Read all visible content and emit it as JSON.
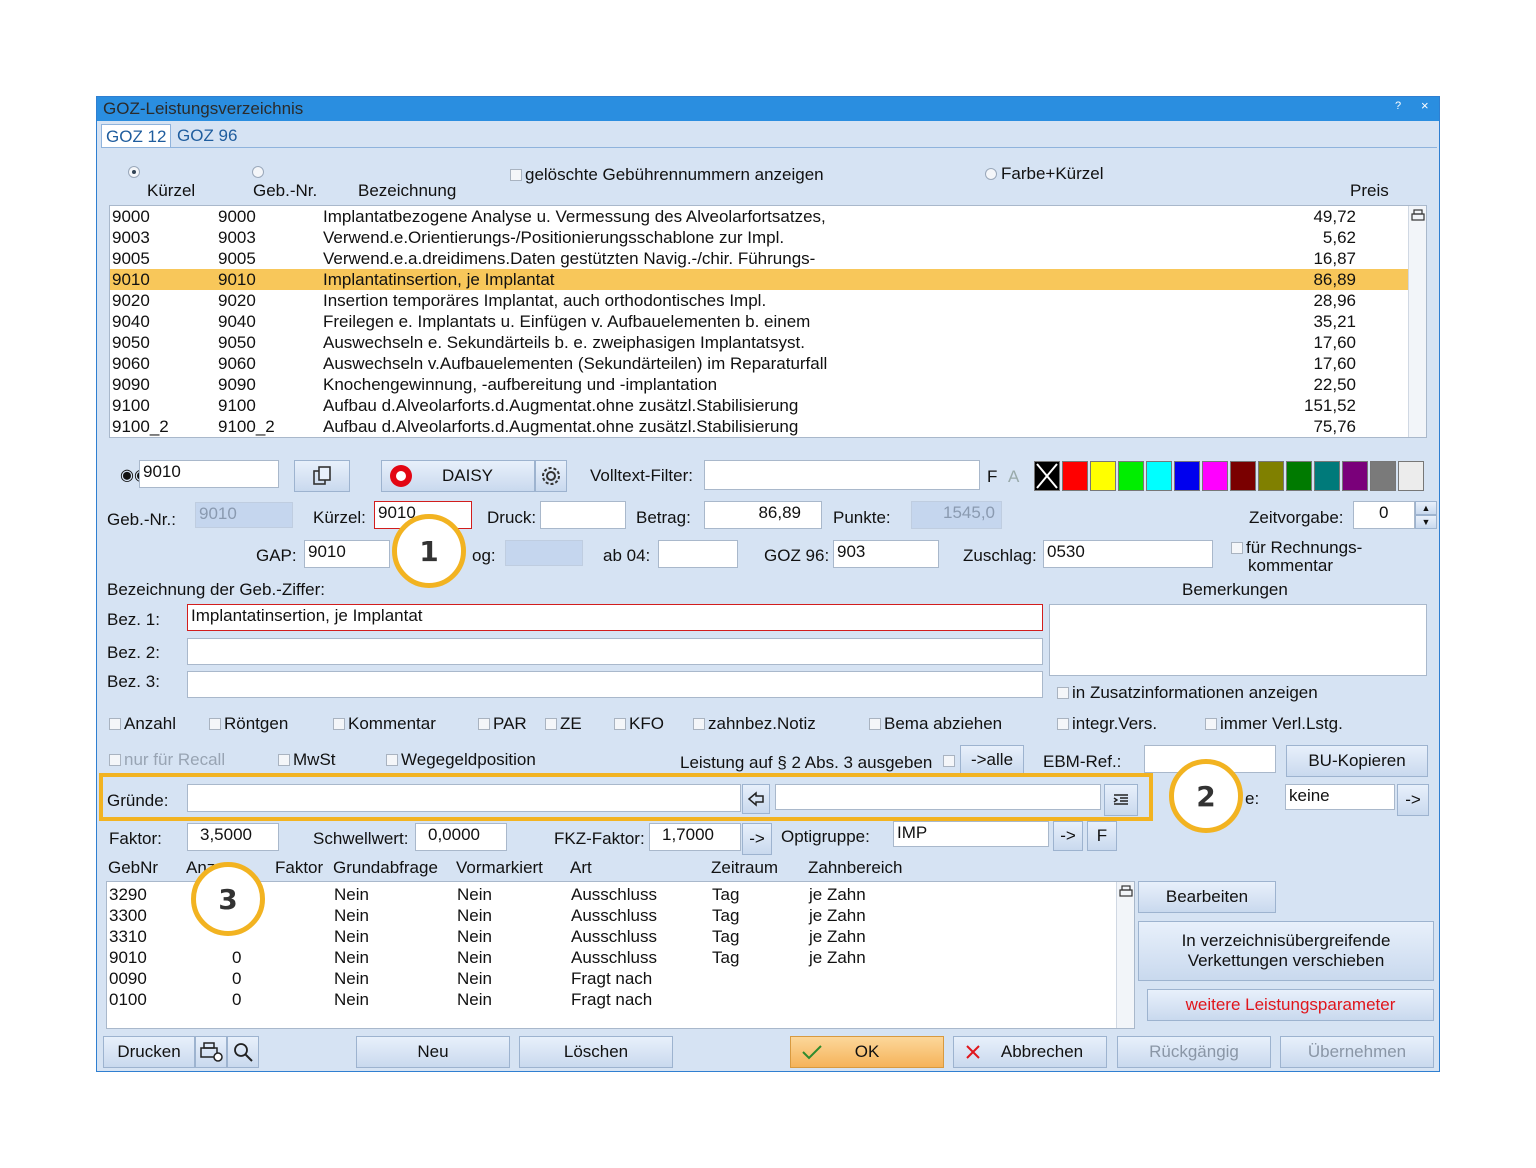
{
  "window": {
    "title": "GOZ-Leistungsverzeichnis",
    "help": "?",
    "close": "×"
  },
  "tabs": [
    {
      "label": "GOZ 12"
    },
    {
      "label": "GOZ 96"
    }
  ],
  "header": {
    "col_kuerzel": "Kürzel",
    "col_gebnr": "Geb.-Nr.",
    "col_bez": "Bezeichnung",
    "col_preis": "Preis",
    "show_deleted": "gelöschte Gebührennummern anzeigen",
    "farbe_kuerzel": "Farbe+Kürzel"
  },
  "items": [
    {
      "k": "9000",
      "g": "9000",
      "b": "Implantatbezogene Analyse u. Vermessung des Alveolarfortsatzes,",
      "p": "49,72"
    },
    {
      "k": "9003",
      "g": "9003",
      "b": "Verwend.e.Orientierungs-/Positionierungsschablone zur Impl.",
      "p": "5,62"
    },
    {
      "k": "9005",
      "g": "9005",
      "b": "Verwend.e.a.dreidimens.Daten gestützten Navig.-/chir. Führungs-",
      "p": "16,87"
    },
    {
      "k": "9010",
      "g": "9010",
      "b": "Implantatinsertion, je Implantat",
      "p": "86,89"
    },
    {
      "k": "9020",
      "g": "9020",
      "b": "Insertion temporäres Implantat, auch orthodontisches Impl.",
      "p": "28,96"
    },
    {
      "k": "9040",
      "g": "9040",
      "b": "Freilegen e. Implantats u. Einfügen v. Aufbauelementen b. einem",
      "p": "35,21"
    },
    {
      "k": "9050",
      "g": "9050",
      "b": "Auswechseln e. Sekundärteils b. e. zweiphasigen Implantatsyst.",
      "p": "17,60"
    },
    {
      "k": "9060",
      "g": "9060",
      "b": "Auswechseln v.Aufbauelementen (Sekundärteilen) im Reparaturfall",
      "p": "17,60"
    },
    {
      "k": "9090",
      "g": "9090",
      "b": "Knochengewinnung, -aufbereitung und -implantation",
      "p": "22,50"
    },
    {
      "k": "9100",
      "g": "9100",
      "b": "Aufbau d.Alveolarforts.d.Augmentat.ohne zusätzl.Stabilisierung",
      "p": "151,52"
    },
    {
      "k": "9100_2",
      "g": "9100_2",
      "b": "Aufbau d.Alveolarforts.d.Augmentat.ohne zusätzl.Stabilisierung",
      "p": "75,76"
    }
  ],
  "search": {
    "value": "9010",
    "daisy": "DAISY",
    "volltext_label": "Volltext-Filter:",
    "volltext_value": "",
    "f": "F",
    "a": "A"
  },
  "colors": [
    "#ffffff",
    "#ff0000",
    "#ffff00",
    "#00ee00",
    "#00ffff",
    "#0000ee",
    "#ff00ff",
    "#7a0000",
    "#808000",
    "#007a00",
    "#007a7a",
    "#7a007a",
    "#7a7a7a",
    "#ececec"
  ],
  "fields": {
    "gebnr_label": "Geb.-Nr.:",
    "gebnr": "9010",
    "kuerzel_label": "Kürzel:",
    "kuerzel": "9010",
    "druck_label": "Druck:",
    "druck": "",
    "betrag_label": "Betrag:",
    "betrag": "86,89",
    "punkte_label": "Punkte:",
    "punkte": "1545,0",
    "zeit_label": "Zeitvorgabe:",
    "zeit": "0",
    "gap_label": "GAP:",
    "gap": "9010",
    "og_label": "og:",
    "ab04_label": "ab 04:",
    "ab04": "",
    "goz96_label": "GOZ 96:",
    "goz96": "903",
    "zuschlag_label": "Zuschlag:",
    "zuschlag": "0530",
    "rechnung_label1": "für Rechnungs-",
    "rechnung_label2": "kommentar"
  },
  "bez": {
    "title": "Bezeichnung der Geb.-Ziffer:",
    "bemerkungen": "Bemerkungen",
    "b1_label": "Bez. 1:",
    "b1": "Implantatinsertion, je Implantat",
    "b2_label": "Bez. 2:",
    "b2": "",
    "b3_label": "Bez. 3:",
    "b3": "",
    "zusatz": "in Zusatzinformationen anzeigen"
  },
  "checks": {
    "anzahl": "Anzahl",
    "roentgen": "Röntgen",
    "kommentar": "Kommentar",
    "par": "PAR",
    "ze": "ZE",
    "kfo": "KFO",
    "notiz": "zahnbez.Notiz",
    "bema": "Bema abziehen",
    "integr": "integr.Vers.",
    "immer": "immer Verl.Lstg.",
    "recall": "nur für Recall",
    "mwst": "MwSt",
    "wegegeld": "Wegegeldposition",
    "leistung": "Leistung auf § 2 Abs. 3 ausgeben"
  },
  "buttons": {
    "alle": "->alle",
    "ebm_label": "EBM-Ref.:",
    "bu": "BU-Kopieren",
    "arrow": "->",
    "f": "F",
    "bearbeiten": "Bearbeiten",
    "verkettung1": "In verzeichnisübergreifende",
    "verkettung2": "Verkettungen verschieben",
    "weitere": "weitere Leistungsparameter",
    "drucken": "Drucken",
    "neu": "Neu",
    "loeschen": "Löschen",
    "ok": "OK",
    "abbrechen": "Abbrechen",
    "rueck": "Rückgängig",
    "uebernehmen": "Übernehmen"
  },
  "gruende": {
    "label": "Gründe:",
    "value": "",
    "e_label": "e:",
    "keine": "keine"
  },
  "faktor": {
    "label": "Faktor:",
    "value": "3,5000",
    "schwell_label": "Schwellwert:",
    "schwell": "0,0000",
    "fkz_label": "FKZ-Faktor:",
    "fkz": "1,7000",
    "opti_label": "Optigruppe:",
    "opti": "IMP"
  },
  "table2": {
    "headers": {
      "gebnr": "GebNr",
      "anz": "Anz",
      "faktor": "Faktor",
      "grund": "Grundabfrage",
      "vor": "Vormarkiert",
      "art": "Art",
      "zeit": "Zeitraum",
      "zahn": "Zahnbereich"
    },
    "rows": [
      {
        "g": "3290",
        "a": "",
        "f": "",
        "gr": "Nein",
        "v": "Nein",
        "art": "Ausschluss",
        "z": "Tag",
        "zb": "je Zahn"
      },
      {
        "g": "3300",
        "a": "",
        "f": "",
        "gr": "Nein",
        "v": "Nein",
        "art": "Ausschluss",
        "z": "Tag",
        "zb": "je Zahn"
      },
      {
        "g": "3310",
        "a": "",
        "f": "",
        "gr": "Nein",
        "v": "Nein",
        "art": "Ausschluss",
        "z": "Tag",
        "zb": "je Zahn"
      },
      {
        "g": "9010",
        "a": "0",
        "f": "",
        "gr": "Nein",
        "v": "Nein",
        "art": "Ausschluss",
        "z": "Tag",
        "zb": "je Zahn"
      },
      {
        "g": "0090",
        "a": "0",
        "f": "",
        "gr": "Nein",
        "v": "Nein",
        "art": "Fragt nach",
        "z": "",
        "zb": ""
      },
      {
        "g": "0100",
        "a": "0",
        "f": "",
        "gr": "Nein",
        "v": "Nein",
        "art": "Fragt nach",
        "z": "",
        "zb": ""
      }
    ]
  },
  "callouts": [
    "1",
    "2",
    "3"
  ]
}
